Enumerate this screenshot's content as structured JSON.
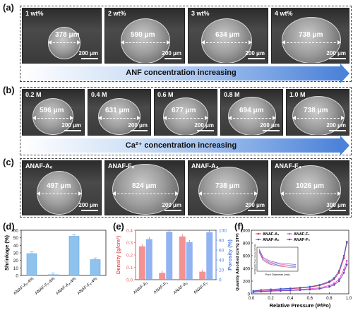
{
  "panels": {
    "a": {
      "letter": "(a)",
      "band_text": "ANF concentration increasing",
      "images": [
        {
          "tag": "1 wt%",
          "diameter": "378 μm",
          "scale": "200 μm"
        },
        {
          "tag": "2 wt%",
          "diameter": "590 μm",
          "scale": "200 μm"
        },
        {
          "tag": "3 wt%",
          "diameter": "634 μm",
          "scale": "200 μm"
        },
        {
          "tag": "4 wt%",
          "diameter": "738 μm",
          "scale": "200 μm"
        }
      ]
    },
    "b": {
      "letter": "(b)",
      "band_text": "Ca²⁺ concentration increasing",
      "images": [
        {
          "tag": "0.2 M",
          "diameter": "596 μm",
          "scale": "200 μm"
        },
        {
          "tag": "0.4 M",
          "diameter": "631 μm",
          "scale": "200 μm"
        },
        {
          "tag": "0.6 M",
          "diameter": "677 μm",
          "scale": "200 μm"
        },
        {
          "tag": "0.8 M",
          "diameter": "694 μm",
          "scale": "200 μm"
        },
        {
          "tag": "1.0 M",
          "diameter": "738 μm",
          "scale": "200 μm"
        }
      ]
    },
    "c": {
      "letter": "(c)",
      "images": [
        {
          "tag": "ANAF-A₀",
          "diameter": "497 μm",
          "scale": "200 μm"
        },
        {
          "tag": "ANAF-F₀",
          "diameter": "824 μm",
          "scale": "200 μm"
        },
        {
          "tag": "ANAF-A₄",
          "diameter": "738 μm",
          "scale": "200 μm"
        },
        {
          "tag": "ANAF-F₄",
          "diameter": "1026 μm",
          "scale": "300 μm"
        }
      ]
    },
    "d": {
      "letter": "(d)"
    },
    "e": {
      "letter": "(e)"
    },
    "f": {
      "letter": "(f)"
    }
  },
  "chart_data": [
    {
      "type": "bar",
      "panel": "d",
      "ylabel": "Shrinkage (%)",
      "ylim": [
        0,
        60
      ],
      "yticks": [
        0,
        10,
        20,
        30,
        40,
        50,
        60
      ],
      "categories": [
        "ANAF-A₀-4%",
        "ANAF-F₀-4%",
        "ANAF-A₄-4%",
        "ANAF-F₄-4%"
      ],
      "values": [
        29,
        1,
        52,
        21
      ],
      "color": "#8fc3ee"
    },
    {
      "type": "bar",
      "panel": "e",
      "ylabel": "Density (g/cm³)",
      "ylabel2": "Porosity (%)",
      "ylim": [
        0,
        0.4
      ],
      "yticks": [
        0.0,
        0.1,
        0.2,
        0.3,
        0.4
      ],
      "ylim2": [
        0,
        100
      ],
      "yticks2": [
        0,
        20,
        40,
        60,
        80,
        100
      ],
      "categories": [
        "ANAF-A₁",
        "ANAF-F₁",
        "ANAF-A₀",
        "ANAF-F₀"
      ],
      "series": [
        {
          "axis": "left",
          "values": [
            0.27,
            0.055,
            0.35,
            0.065
          ],
          "color": "#f07f80"
        },
        {
          "axis": "right",
          "values": [
            82,
            97,
            76,
            96
          ],
          "color": "#7fa6ef"
        }
      ]
    },
    {
      "type": "line",
      "panel": "f",
      "xlabel": "Relative Pressure (P/Po)",
      "ylabel": "Quantity Adsorbed (cm³/g STP)",
      "xlim": [
        0,
        1.0
      ],
      "xticks": [
        0.0,
        0.2,
        0.4,
        0.6,
        0.8,
        1.0
      ],
      "ylim": [
        0,
        1000
      ],
      "yticks": [
        0,
        200,
        400,
        600,
        800,
        1000
      ],
      "legend_position": "top-left",
      "series": [
        {
          "name": "ANAF-A₁",
          "color": "#e0314b",
          "x": [
            0.02,
            0.1,
            0.2,
            0.3,
            0.4,
            0.5,
            0.6,
            0.7,
            0.8,
            0.85,
            0.9,
            0.95,
            0.98
          ],
          "y": [
            40,
            55,
            65,
            72,
            80,
            90,
            105,
            130,
            180,
            230,
            330,
            560,
            800
          ]
        },
        {
          "name": "ANAF-A₀",
          "color": "#3a5fcd",
          "x": [
            0.02,
            0.1,
            0.2,
            0.3,
            0.4,
            0.5,
            0.6,
            0.7,
            0.8,
            0.85,
            0.9,
            0.95,
            0.98
          ],
          "y": [
            45,
            60,
            70,
            78,
            86,
            96,
            112,
            140,
            195,
            250,
            360,
            600,
            820
          ]
        },
        {
          "name": "ANAF-F₁",
          "color": "#d94fd0",
          "x": [
            0.02,
            0.1,
            0.2,
            0.3,
            0.4,
            0.5,
            0.6,
            0.7,
            0.8,
            0.85,
            0.9,
            0.95,
            0.98
          ],
          "y": [
            30,
            42,
            50,
            55,
            60,
            68,
            78,
            95,
            130,
            165,
            230,
            380,
            520
          ]
        },
        {
          "name": "ANAF-F₀",
          "color": "#6a3dbd",
          "x": [
            0.02,
            0.1,
            0.2,
            0.3,
            0.4,
            0.5,
            0.6,
            0.7,
            0.8,
            0.85,
            0.9,
            0.95,
            0.98
          ],
          "y": [
            25,
            35,
            42,
            47,
            52,
            58,
            66,
            80,
            110,
            140,
            200,
            330,
            460
          ]
        }
      ],
      "inset": {
        "xlabel": "Pore Diameter (nm)",
        "ylabel": "dV/dlog(D) Pore Volume (cm³/g)"
      }
    }
  ]
}
